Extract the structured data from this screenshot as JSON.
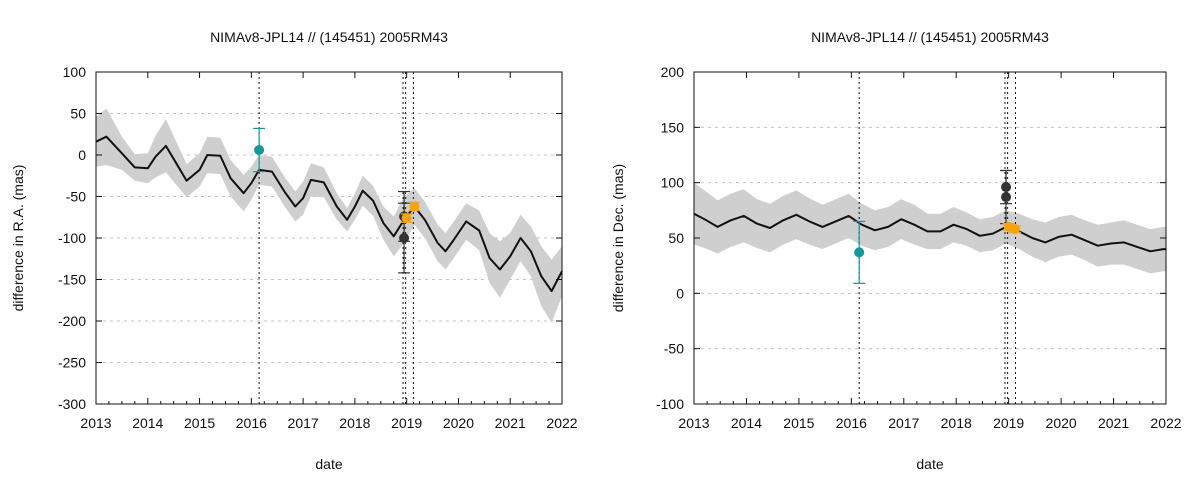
{
  "chart_data": [
    {
      "type": "line",
      "title": "NIMAv8-JPL14 // (145451) 2005RM43",
      "xlabel": "date",
      "ylabel": "difference in R.A. (mas)",
      "xlim": [
        2013,
        2022
      ],
      "ylim": [
        -300,
        100
      ],
      "xticks": [
        "2013",
        "2014",
        "2015",
        "2016",
        "2017",
        "2018",
        "2019",
        "2020",
        "2021",
        "2022"
      ],
      "yticks": [
        "100",
        "50",
        "0",
        "-50",
        "-100",
        "-150",
        "-200",
        "-250",
        "-300"
      ],
      "grid": true,
      "colors": {
        "line": "#111111",
        "band": "#cfcfcf",
        "teal": "#12979a",
        "dark": "#333333",
        "orange": "#f5a30f"
      },
      "series": [
        {
          "name": "difference",
          "x": [
            2013.0,
            2013.2,
            2013.5,
            2013.75,
            2014.0,
            2014.15,
            2014.35,
            2014.55,
            2014.75,
            2015.0,
            2015.15,
            2015.4,
            2015.6,
            2015.85,
            2016.0,
            2016.15,
            2016.4,
            2016.65,
            2016.85,
            2017.0,
            2017.15,
            2017.4,
            2017.65,
            2017.85,
            2018.0,
            2018.15,
            2018.35,
            2018.55,
            2018.75,
            2018.95,
            2019.15,
            2019.35,
            2019.6,
            2019.75,
            2019.9,
            2020.15,
            2020.4,
            2020.6,
            2020.8,
            2021.0,
            2021.2,
            2021.4,
            2021.6,
            2021.8,
            2022.0
          ],
          "y": [
            16,
            22,
            2,
            -15,
            -16,
            -2,
            11,
            -10,
            -31,
            -18,
            0,
            -1,
            -28,
            -46,
            -34,
            -18,
            -20,
            -45,
            -62,
            -52,
            -30,
            -33,
            -62,
            -78,
            -62,
            -43,
            -55,
            -82,
            -98,
            -78,
            -62,
            -78,
            -106,
            -116,
            -103,
            -80,
            -91,
            -124,
            -138,
            -122,
            -100,
            -116,
            -146,
            -164,
            -140
          ]
        }
      ],
      "band_halfwidth": [
        30,
        34,
        20,
        16,
        18,
        25,
        32,
        26,
        20,
        20,
        22,
        22,
        22,
        22,
        20,
        18,
        18,
        18,
        18,
        20,
        20,
        18,
        16,
        14,
        16,
        18,
        18,
        20,
        24,
        28,
        22,
        22,
        22,
        22,
        22,
        22,
        24,
        30,
        34,
        28,
        28,
        30,
        36,
        38,
        30
      ],
      "observations": [
        {
          "x": 2016.15,
          "y": 6,
          "err": 26,
          "color": "teal"
        },
        {
          "x": 2018.95,
          "y": -74,
          "err": 30,
          "color": "dark"
        },
        {
          "x": 2018.95,
          "y": -100,
          "err": 42,
          "color": "dark"
        },
        {
          "x": 2019.0,
          "y": -76,
          "err": 5,
          "color": "orange"
        },
        {
          "x": 2019.15,
          "y": -62,
          "err": 5,
          "color": "orange"
        }
      ],
      "vlines": [
        2016.15,
        2018.93,
        2018.98,
        2019.13
      ]
    },
    {
      "type": "line",
      "title": "NIMAv8-JPL14 // (145451) 2005RM43",
      "xlabel": "date",
      "ylabel": "difference in Dec. (mas)",
      "xlim": [
        2013,
        2022
      ],
      "ylim": [
        -100,
        200
      ],
      "xticks": [
        "2013",
        "2014",
        "2015",
        "2016",
        "2017",
        "2018",
        "2019",
        "2020",
        "2021",
        "2022"
      ],
      "yticks": [
        "200",
        "150",
        "100",
        "50",
        "0",
        "-50",
        "-100"
      ],
      "grid": true,
      "colors": {
        "line": "#111111",
        "band": "#cfcfcf",
        "teal": "#12979a",
        "dark": "#333333",
        "orange": "#f5a30f"
      },
      "series": [
        {
          "name": "difference",
          "x": [
            2013.0,
            2013.2,
            2013.45,
            2013.7,
            2013.95,
            2014.2,
            2014.45,
            2014.7,
            2014.95,
            2015.2,
            2015.45,
            2015.7,
            2015.95,
            2016.2,
            2016.45,
            2016.7,
            2016.95,
            2017.2,
            2017.45,
            2017.7,
            2017.95,
            2018.2,
            2018.45,
            2018.7,
            2018.95,
            2019.2,
            2019.45,
            2019.7,
            2019.95,
            2020.2,
            2020.45,
            2020.7,
            2020.95,
            2021.2,
            2021.45,
            2021.7,
            2021.95,
            2022.0
          ],
          "y": [
            72,
            67,
            60,
            66,
            70,
            63,
            59,
            66,
            71,
            65,
            60,
            65,
            70,
            62,
            57,
            60,
            67,
            62,
            56,
            56,
            62,
            58,
            52,
            54,
            60,
            56,
            50,
            46,
            51,
            53,
            48,
            43,
            45,
            46,
            42,
            38,
            40,
            40
          ]
        }
      ],
      "band_halfwidth": [
        28,
        26,
        24,
        24,
        24,
        22,
        22,
        22,
        22,
        21,
        20,
        20,
        20,
        19,
        18,
        18,
        18,
        18,
        16,
        16,
        16,
        15,
        15,
        15,
        15,
        16,
        17,
        18,
        18,
        18,
        18,
        19,
        19,
        20,
        20,
        20,
        20,
        20
      ],
      "observations": [
        {
          "x": 2016.15,
          "y": 37,
          "err": 28,
          "color": "teal"
        },
        {
          "x": 2018.95,
          "y": 96,
          "err": 15,
          "color": "dark"
        },
        {
          "x": 2018.95,
          "y": 87,
          "err": 24,
          "color": "dark"
        },
        {
          "x": 2019.0,
          "y": 60,
          "err": 3,
          "color": "orange"
        },
        {
          "x": 2019.12,
          "y": 58,
          "err": 3,
          "color": "orange"
        }
      ],
      "vlines": [
        2016.15,
        2018.93,
        2018.98,
        2019.13
      ]
    }
  ]
}
